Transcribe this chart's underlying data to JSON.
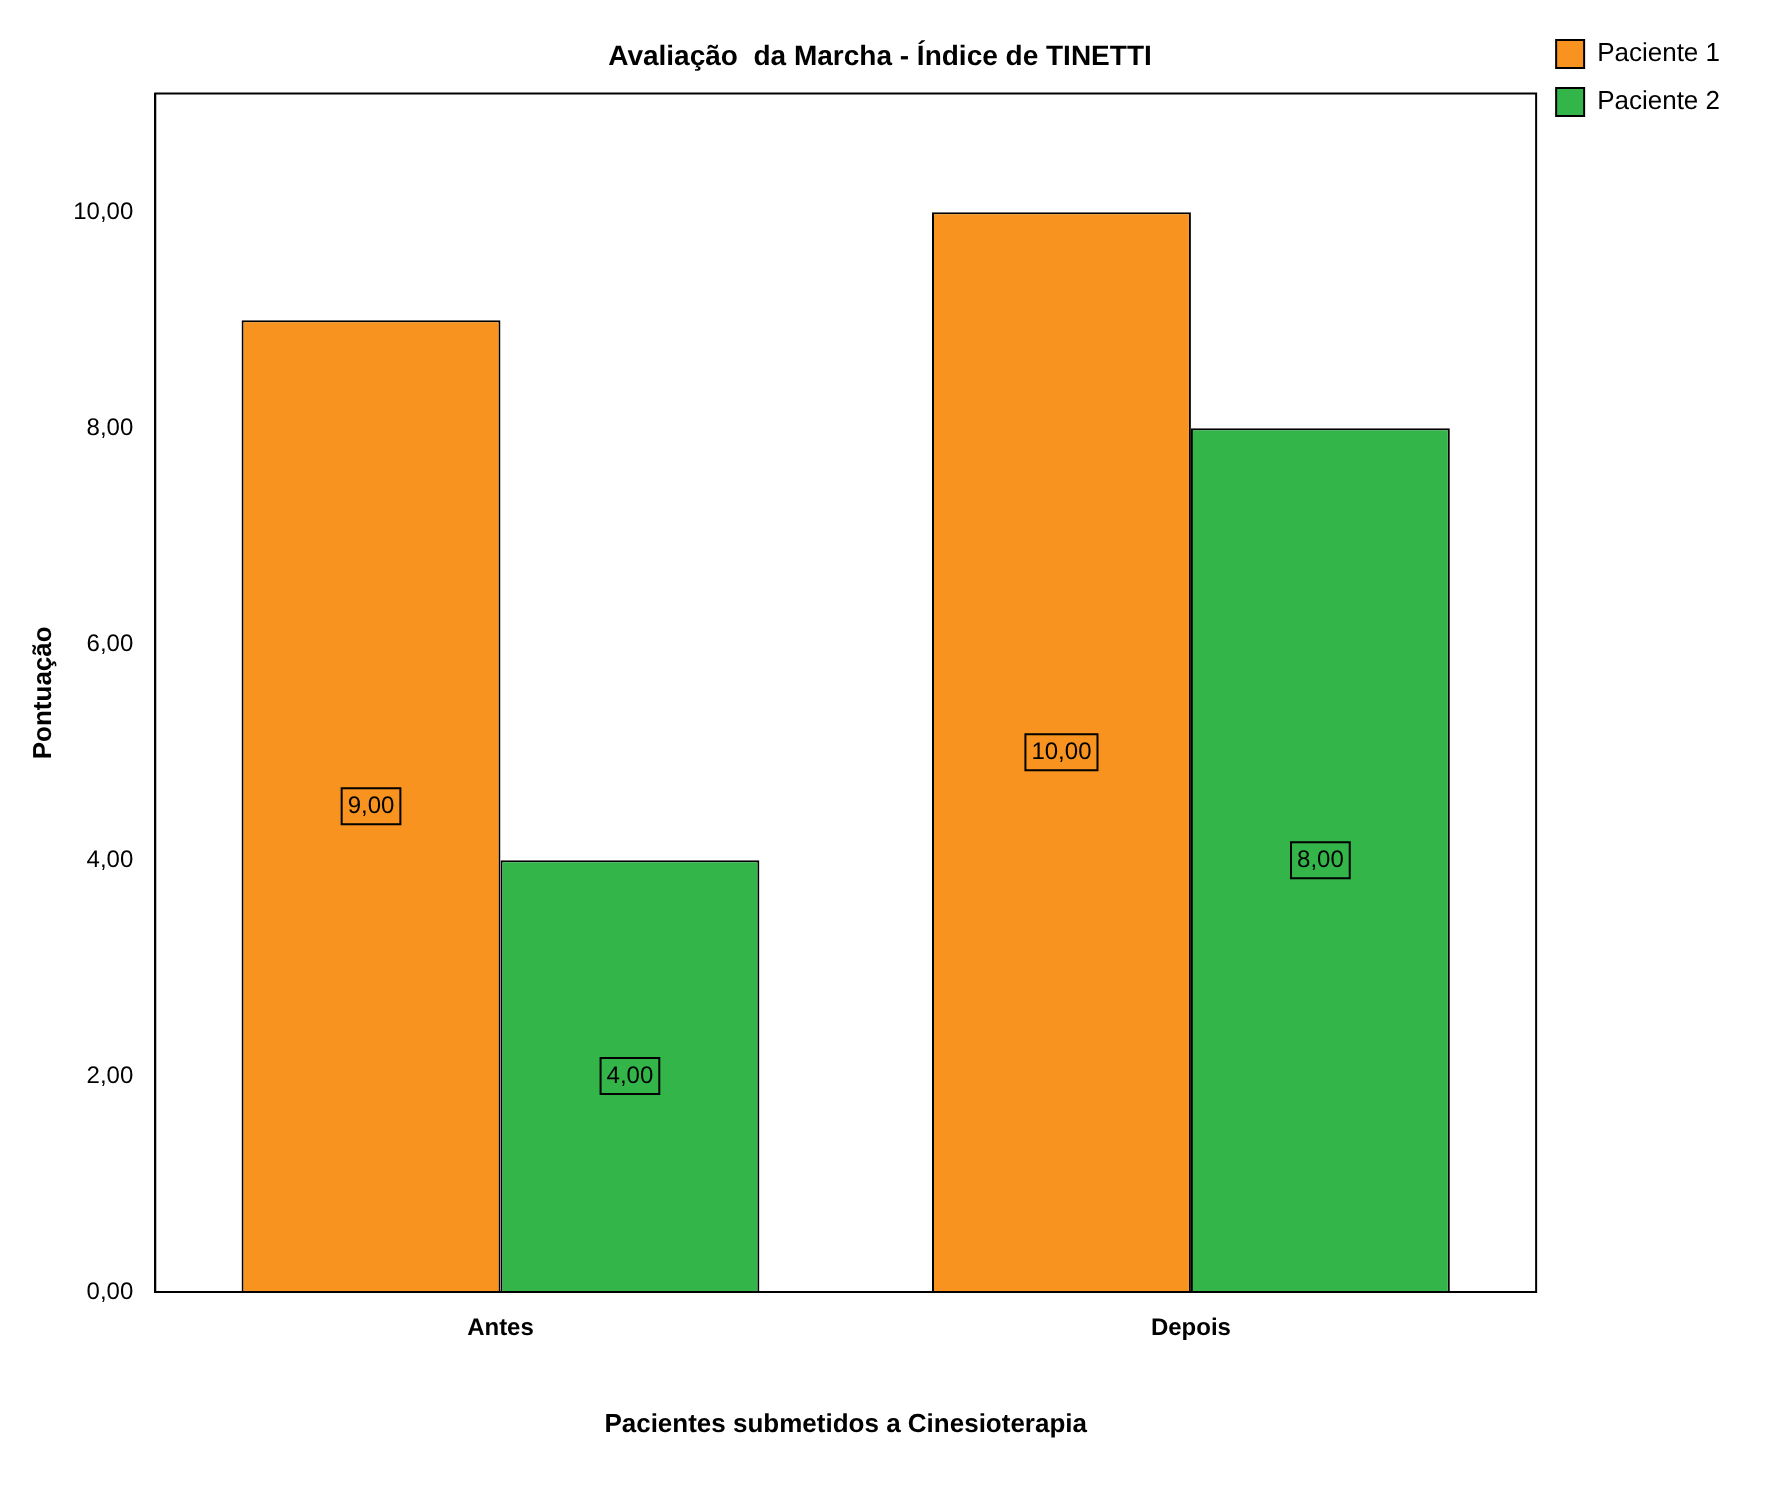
{
  "chart_data": {
    "type": "bar",
    "title": "Avaliação  da Marcha - Índice de TINETTI",
    "xlabel": "Pacientes submetidos a Cinesioterapia",
    "ylabel": "Pontuação",
    "categories": [
      "Antes",
      "Depois"
    ],
    "series": [
      {
        "name": "Paciente 1",
        "color": "#f7931e",
        "values": [
          9,
          10
        ],
        "value_labels": [
          "9,00",
          "10,00"
        ]
      },
      {
        "name": "Paciente 2",
        "color": "#33b54a",
        "values": [
          4,
          8
        ],
        "value_labels": [
          "4,00",
          "8,00"
        ]
      }
    ],
    "ylim": [
      0,
      11.1
    ],
    "yticks": [
      {
        "value": 0,
        "label": "0,00"
      },
      {
        "value": 2,
        "label": "2,00"
      },
      {
        "value": 4,
        "label": "4,00"
      },
      {
        "value": 6,
        "label": "6,00"
      },
      {
        "value": 8,
        "label": "8,00"
      },
      {
        "value": 10,
        "label": "10,00"
      }
    ],
    "grid": false,
    "legend": "top right"
  }
}
